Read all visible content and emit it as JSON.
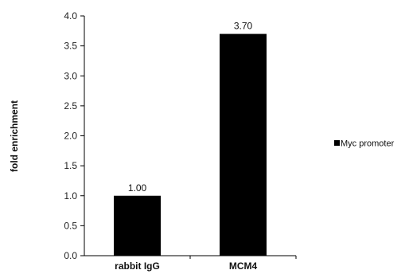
{
  "chart_data": {
    "type": "bar",
    "categories": [
      "rabbit IgG",
      "MCM4"
    ],
    "series": [
      {
        "name": "Myc promoter",
        "values": [
          1.0,
          3.7
        ],
        "color": "#000000"
      }
    ],
    "data_labels": [
      "1.00",
      "3.70"
    ],
    "ylabel": "fold enrichment",
    "xlabel": "",
    "ylim": [
      0,
      4
    ],
    "yticks": [
      "0.0",
      "0.5",
      "1.0",
      "1.5",
      "2.0",
      "2.5",
      "3.0",
      "3.5",
      "4.0"
    ],
    "grid": false,
    "legend": {
      "position": "right",
      "entries": [
        "Myc promoter"
      ]
    }
  }
}
